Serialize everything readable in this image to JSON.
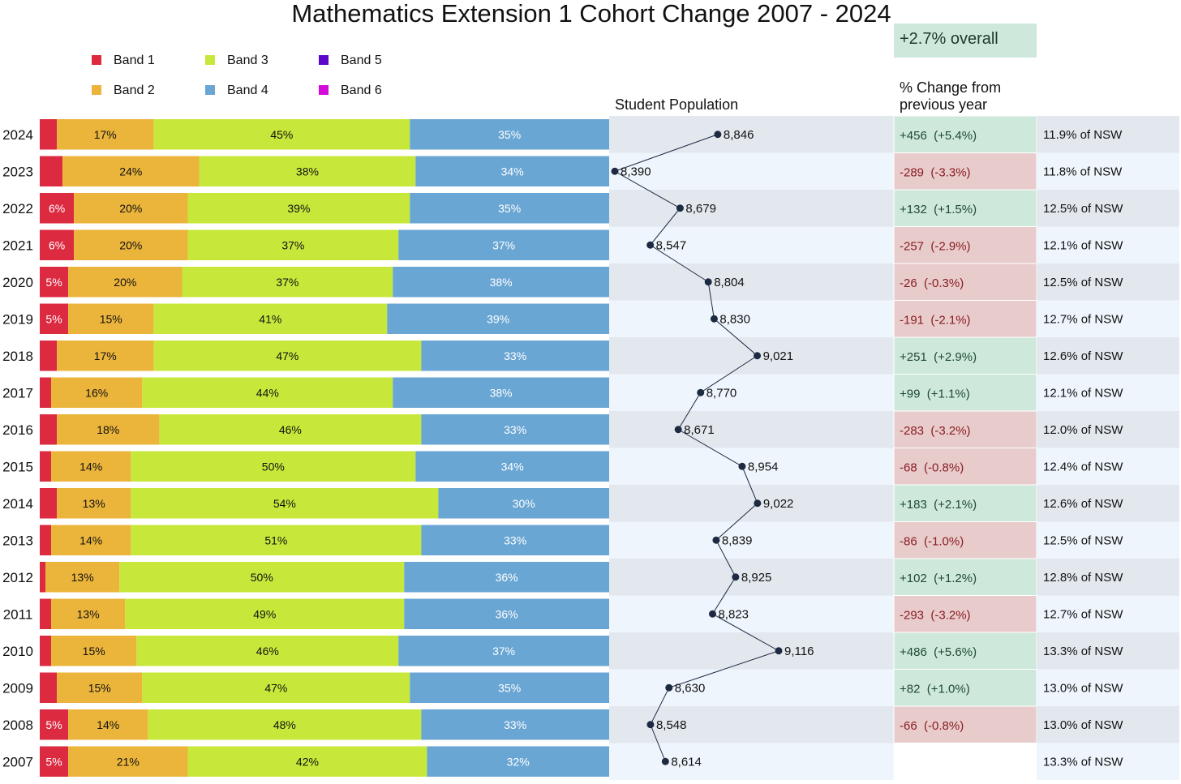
{
  "chart_data": {
    "type": "bar",
    "title": "Mathematics Extension 1 Cohort Change 2007 - 2024",
    "overall_change": "+2.7% overall",
    "population_header": "Student Population",
    "change_header_line1": "% Change from",
    "change_header_line2": "previous year",
    "legend": [
      {
        "name": "Band 1",
        "color": "#dc2a41"
      },
      {
        "name": "Band 2",
        "color": "#ebb43b"
      },
      {
        "name": "Band 3",
        "color": "#c7e83a"
      },
      {
        "name": "Band 4",
        "color": "#6aa6d4"
      },
      {
        "name": "Band 5",
        "color": "#5c06c9"
      },
      {
        "name": "Band 6",
        "color": "#d40bd9"
      }
    ],
    "colors": {
      "positive_bg": "#cfe8dc",
      "negative_bg": "#e8cccc",
      "positive_text": "#1e4a30",
      "negative_text": "#8a1c22",
      "row_dark": "#e3e8ef",
      "row_light": "#eef5fc",
      "line": "#1d2a42"
    },
    "rows": [
      {
        "year": "2024",
        "bands": [
          3,
          17,
          45,
          35
        ],
        "labels": [
          "",
          "17%",
          "45%",
          "35%"
        ],
        "population": 8846,
        "population_label": "8,846",
        "change": "+456  (+5.4%)",
        "change_sign": "pos",
        "nsw": "11.9% of NSW"
      },
      {
        "year": "2023",
        "bands": [
          4,
          24,
          38,
          34
        ],
        "labels": [
          "",
          "24%",
          "38%",
          "34%"
        ],
        "population": 8390,
        "population_label": "8,390",
        "change": "-289  (-3.3%)",
        "change_sign": "neg",
        "nsw": "11.8% of NSW"
      },
      {
        "year": "2022",
        "bands": [
          6,
          20,
          39,
          35
        ],
        "labels": [
          "6%",
          "20%",
          "39%",
          "35%"
        ],
        "population": 8679,
        "population_label": "8,679",
        "change": "+132  (+1.5%)",
        "change_sign": "pos",
        "nsw": "12.5% of NSW"
      },
      {
        "year": "2021",
        "bands": [
          6,
          20,
          37,
          37
        ],
        "labels": [
          "6%",
          "20%",
          "37%",
          "37%"
        ],
        "population": 8547,
        "population_label": "8,547",
        "change": "-257  (-2.9%)",
        "change_sign": "neg",
        "nsw": "12.1% of NSW"
      },
      {
        "year": "2020",
        "bands": [
          5,
          20,
          37,
          38
        ],
        "labels": [
          "5%",
          "20%",
          "37%",
          "38%"
        ],
        "population": 8804,
        "population_label": "8,804",
        "change": "-26  (-0.3%)",
        "change_sign": "neg",
        "nsw": "12.5% of NSW"
      },
      {
        "year": "2019",
        "bands": [
          5,
          15,
          41,
          39
        ],
        "labels": [
          "5%",
          "15%",
          "41%",
          "39%"
        ],
        "population": 8830,
        "population_label": "8,830",
        "change": "-191  (-2.1%)",
        "change_sign": "neg",
        "nsw": "12.7% of NSW"
      },
      {
        "year": "2018",
        "bands": [
          3,
          17,
          47,
          33
        ],
        "labels": [
          "",
          "17%",
          "47%",
          "33%"
        ],
        "population": 9021,
        "population_label": "9,021",
        "change": "+251  (+2.9%)",
        "change_sign": "pos",
        "nsw": "12.6% of NSW"
      },
      {
        "year": "2017",
        "bands": [
          2,
          16,
          44,
          38
        ],
        "labels": [
          "",
          "16%",
          "44%",
          "38%"
        ],
        "population": 8770,
        "population_label": "8,770",
        "change": "+99  (+1.1%)",
        "change_sign": "pos",
        "nsw": "12.1% of NSW"
      },
      {
        "year": "2016",
        "bands": [
          3,
          18,
          46,
          33
        ],
        "labels": [
          "",
          "18%",
          "46%",
          "33%"
        ],
        "population": 8671,
        "population_label": "8,671",
        "change": "-283  (-3.2%)",
        "change_sign": "neg",
        "nsw": "12.0% of NSW"
      },
      {
        "year": "2015",
        "bands": [
          2,
          14,
          50,
          34
        ],
        "labels": [
          "",
          "14%",
          "50%",
          "34%"
        ],
        "population": 8954,
        "population_label": "8,954",
        "change": "-68  (-0.8%)",
        "change_sign": "neg",
        "nsw": "12.4% of NSW"
      },
      {
        "year": "2014",
        "bands": [
          3,
          13,
          54,
          30
        ],
        "labels": [
          "",
          "13%",
          "54%",
          "30%"
        ],
        "population": 9022,
        "population_label": "9,022",
        "change": "+183  (+2.1%)",
        "change_sign": "pos",
        "nsw": "12.6% of NSW"
      },
      {
        "year": "2013",
        "bands": [
          2,
          14,
          51,
          33
        ],
        "labels": [
          "",
          "14%",
          "51%",
          "33%"
        ],
        "population": 8839,
        "population_label": "8,839",
        "change": "-86  (-1.0%)",
        "change_sign": "neg",
        "nsw": "12.5% of NSW"
      },
      {
        "year": "2012",
        "bands": [
          1,
          13,
          50,
          36
        ],
        "labels": [
          "",
          "13%",
          "50%",
          "36%"
        ],
        "population": 8925,
        "population_label": "8,925",
        "change": "+102  (+1.2%)",
        "change_sign": "pos",
        "nsw": "12.8% of NSW"
      },
      {
        "year": "2011",
        "bands": [
          2,
          13,
          49,
          36
        ],
        "labels": [
          "",
          "13%",
          "49%",
          "36%"
        ],
        "population": 8823,
        "population_label": "8,823",
        "change": "-293  (-3.2%)",
        "change_sign": "neg",
        "nsw": "12.7% of NSW"
      },
      {
        "year": "2010",
        "bands": [
          2,
          15,
          46,
          37
        ],
        "labels": [
          "",
          "15%",
          "46%",
          "37%"
        ],
        "population": 9116,
        "population_label": "9,116",
        "change": "+486  (+5.6%)",
        "change_sign": "pos",
        "nsw": "13.3% of NSW"
      },
      {
        "year": "2009",
        "bands": [
          3,
          15,
          47,
          35
        ],
        "labels": [
          "",
          "15%",
          "47%",
          "35%"
        ],
        "population": 8630,
        "population_label": "8,630",
        "change": "+82  (+1.0%)",
        "change_sign": "pos",
        "nsw": "13.0% of NSW"
      },
      {
        "year": "2008",
        "bands": [
          5,
          14,
          48,
          33
        ],
        "labels": [
          "5%",
          "14%",
          "48%",
          "33%"
        ],
        "population": 8548,
        "population_label": "8,548",
        "change": "-66  (-0.8%)",
        "change_sign": "neg",
        "nsw": "13.0% of NSW"
      },
      {
        "year": "2007",
        "bands": [
          5,
          21,
          42,
          32
        ],
        "labels": [
          "5%",
          "21%",
          "42%",
          "32%"
        ],
        "population": 8614,
        "population_label": "8,614",
        "change": "",
        "change_sign": "none",
        "nsw": "13.3% of NSW"
      }
    ]
  }
}
